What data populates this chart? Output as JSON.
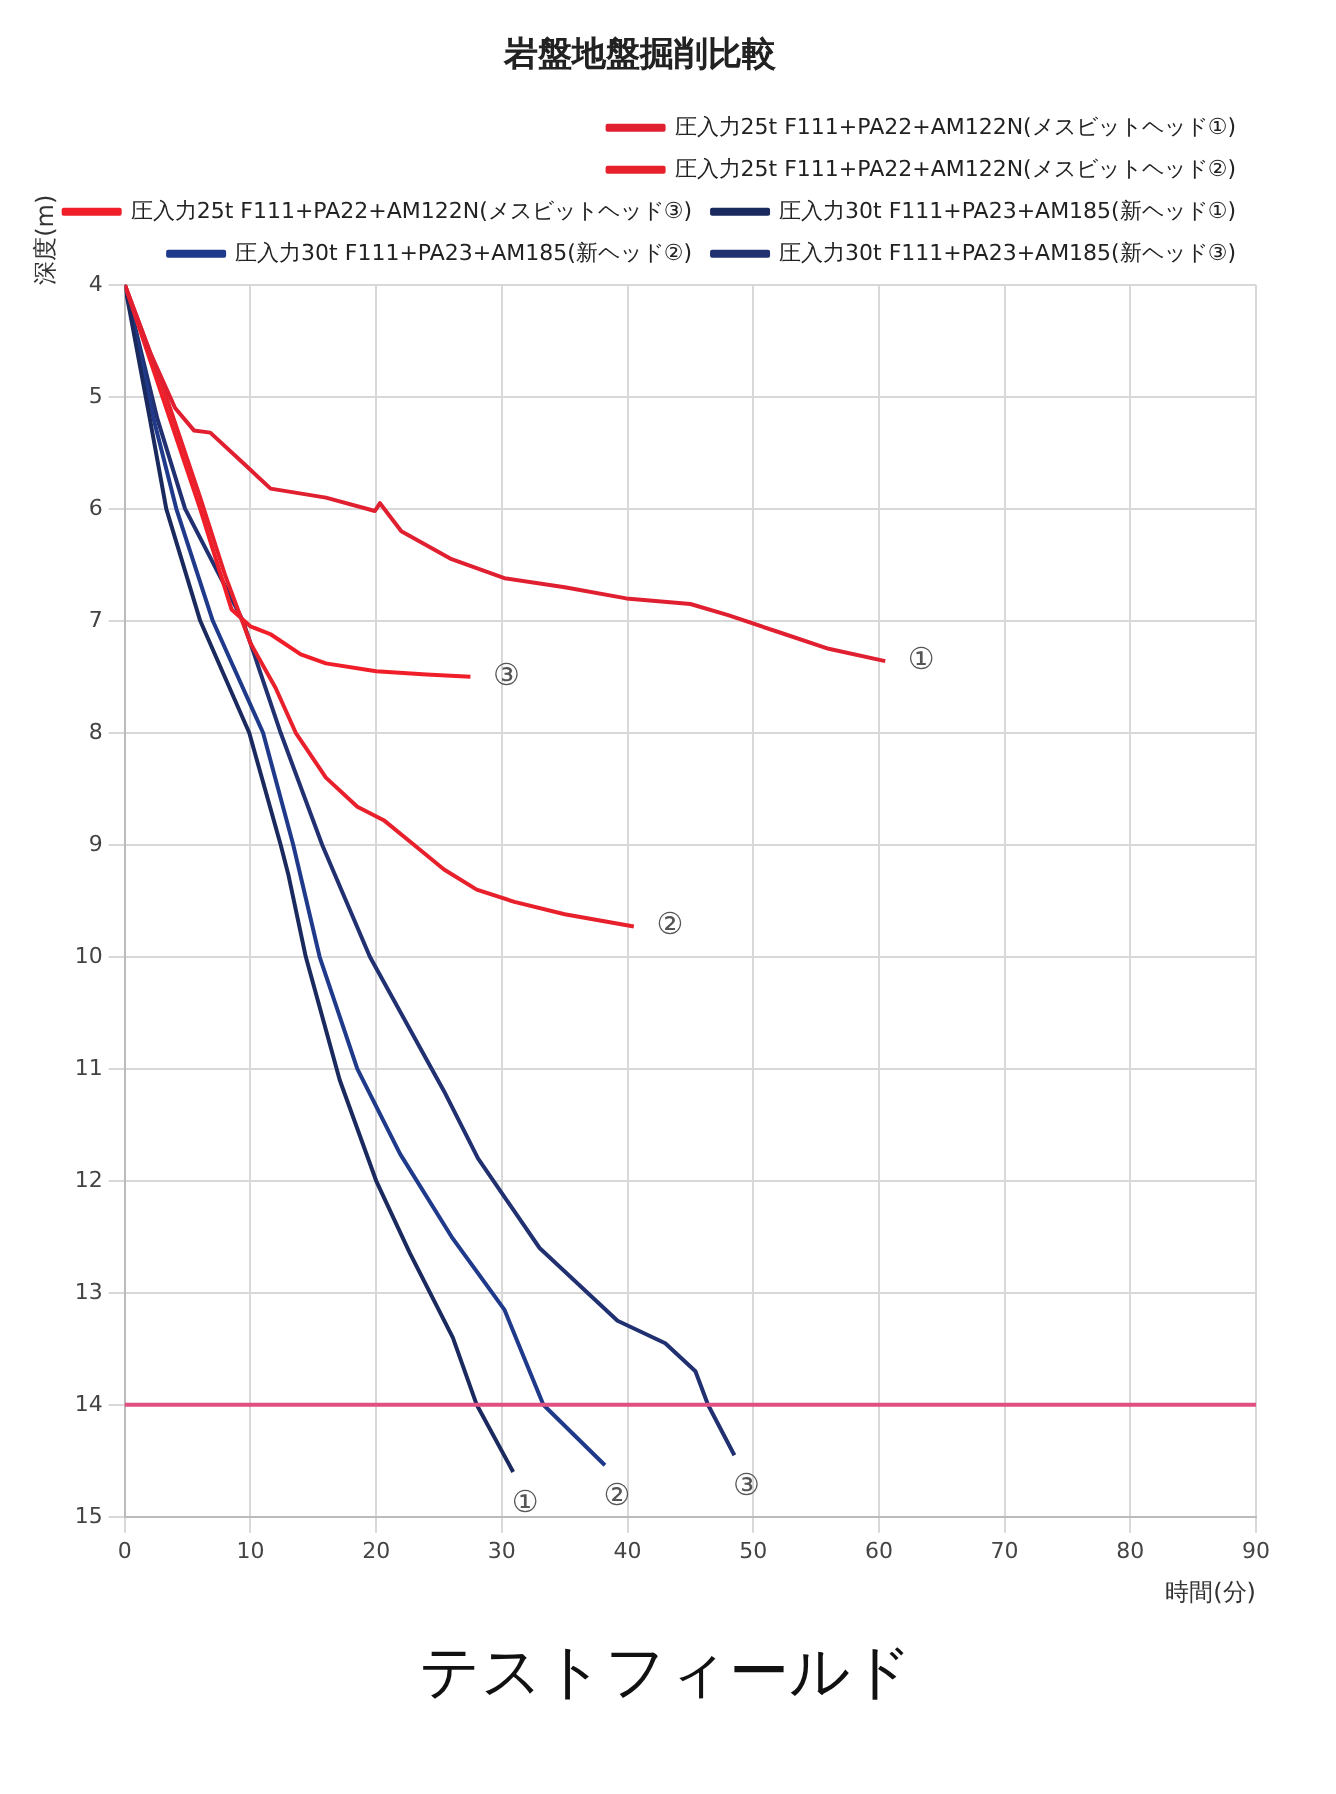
{
  "chart_data": {
    "type": "line",
    "title": "岩盤地盤掘削比較",
    "xlabel": "時間(分)",
    "ylabel": "深度(m)",
    "xlim": [
      0,
      90
    ],
    "xticks": [
      0,
      10,
      20,
      30,
      40,
      50,
      60,
      70,
      80,
      90
    ],
    "ylim": [
      15,
      4
    ],
    "yticks": [
      4,
      5,
      6,
      7,
      8,
      9,
      10,
      11,
      12,
      13,
      14,
      15
    ],
    "grid": true,
    "legend": "top right",
    "marker": "none",
    "line_style": "solid",
    "series": [
      {
        "name": "圧入力25t F111+PA22+AM122N(メスビットヘッド①)",
        "color": "#e02030",
        "x": [
          0,
          2,
          4,
          5.5,
          6.8,
          9.5,
          11.6,
          16,
          19.9,
          20.3,
          22,
          26,
          30.2,
          35,
          39.9,
          45,
          48,
          52,
          56,
          60.5
        ],
        "values": [
          4,
          4.6,
          5.1,
          5.3,
          5.32,
          5.6,
          5.82,
          5.9,
          6.02,
          5.95,
          6.2,
          6.45,
          6.62,
          6.7,
          6.8,
          6.85,
          6.95,
          7.1,
          7.25,
          7.36
        ]
      },
      {
        "name": "圧入力25t F111+PA22+AM122N(メスビットヘッド②)",
        "color": "#e8202c",
        "x": [
          0,
          3,
          6,
          8,
          10,
          12,
          13.6,
          16,
          18.5,
          20.6,
          23,
          25.4,
          28,
          31,
          35,
          40.5
        ],
        "values": [
          4,
          4.9,
          5.9,
          6.6,
          7.2,
          7.6,
          8.0,
          8.4,
          8.66,
          8.78,
          9.0,
          9.22,
          9.4,
          9.51,
          9.62,
          9.73
        ]
      },
      {
        "name": "圧入力25t F111+PA22+AM122N(メスビットヘッド③)",
        "color": "#f01e28",
        "x": [
          0,
          3,
          6,
          8.5,
          10,
          11.6,
          14,
          16,
          20,
          24,
          27.5
        ],
        "values": [
          4,
          5,
          6,
          6.9,
          7.05,
          7.12,
          7.3,
          7.38,
          7.45,
          7.48,
          7.5
        ]
      },
      {
        "name": "圧入力30t F111+PA23+AM185(新ヘッド①)",
        "color": "#1b2a5e",
        "x": [
          0,
          2,
          3.3,
          6,
          9.9,
          12.4,
          13,
          14.4,
          17.1,
          20,
          22.7,
          26.1,
          28,
          30.9
        ],
        "values": [
          4,
          5.2,
          6,
          7,
          8,
          9,
          9.26,
          10,
          11.1,
          12,
          12.65,
          13.4,
          14,
          14.6
        ]
      },
      {
        "name": "圧入力30t F111+PA23+AM185(新ヘッド②)",
        "color": "#1f3a8a",
        "x": [
          0,
          2.3,
          4.1,
          7,
          11,
          13.4,
          15.5,
          18.5,
          21.9,
          26,
          30.2,
          33.3,
          38.2
        ],
        "values": [
          4,
          5.2,
          6,
          7,
          8,
          9,
          10,
          11,
          11.76,
          12.5,
          13.15,
          14,
          14.54
        ]
      },
      {
        "name": "圧入力30t F111+PA23+AM185(新ヘッド③)",
        "color": "#203070",
        "x": [
          0,
          2.6,
          4.8,
          9.4,
          12.4,
          15.7,
          19.5,
          25.4,
          28.1,
          33,
          39.2,
          43,
          45.4,
          46.4,
          48.5
        ],
        "values": [
          4,
          5.2,
          6,
          7,
          8,
          9,
          10,
          11.2,
          11.8,
          12.6,
          13.25,
          13.45,
          13.7,
          14,
          14.45
        ]
      }
    ],
    "ref_lines": [
      {
        "axis": "y",
        "value": 14,
        "color": "#e05080"
      }
    ],
    "annotations": [
      {
        "text": "①",
        "x": 60.5,
        "y": 7.36
      },
      {
        "text": "②",
        "x": 40.5,
        "y": 9.73
      },
      {
        "text": "③",
        "x": 27.5,
        "y": 7.5
      },
      {
        "text": "①",
        "x": 30.9,
        "y": 14.6
      },
      {
        "text": "②",
        "x": 38.2,
        "y": 14.54
      },
      {
        "text": "③",
        "x": 48.5,
        "y": 14.45
      },
      "テストフィールド"
    ]
  }
}
